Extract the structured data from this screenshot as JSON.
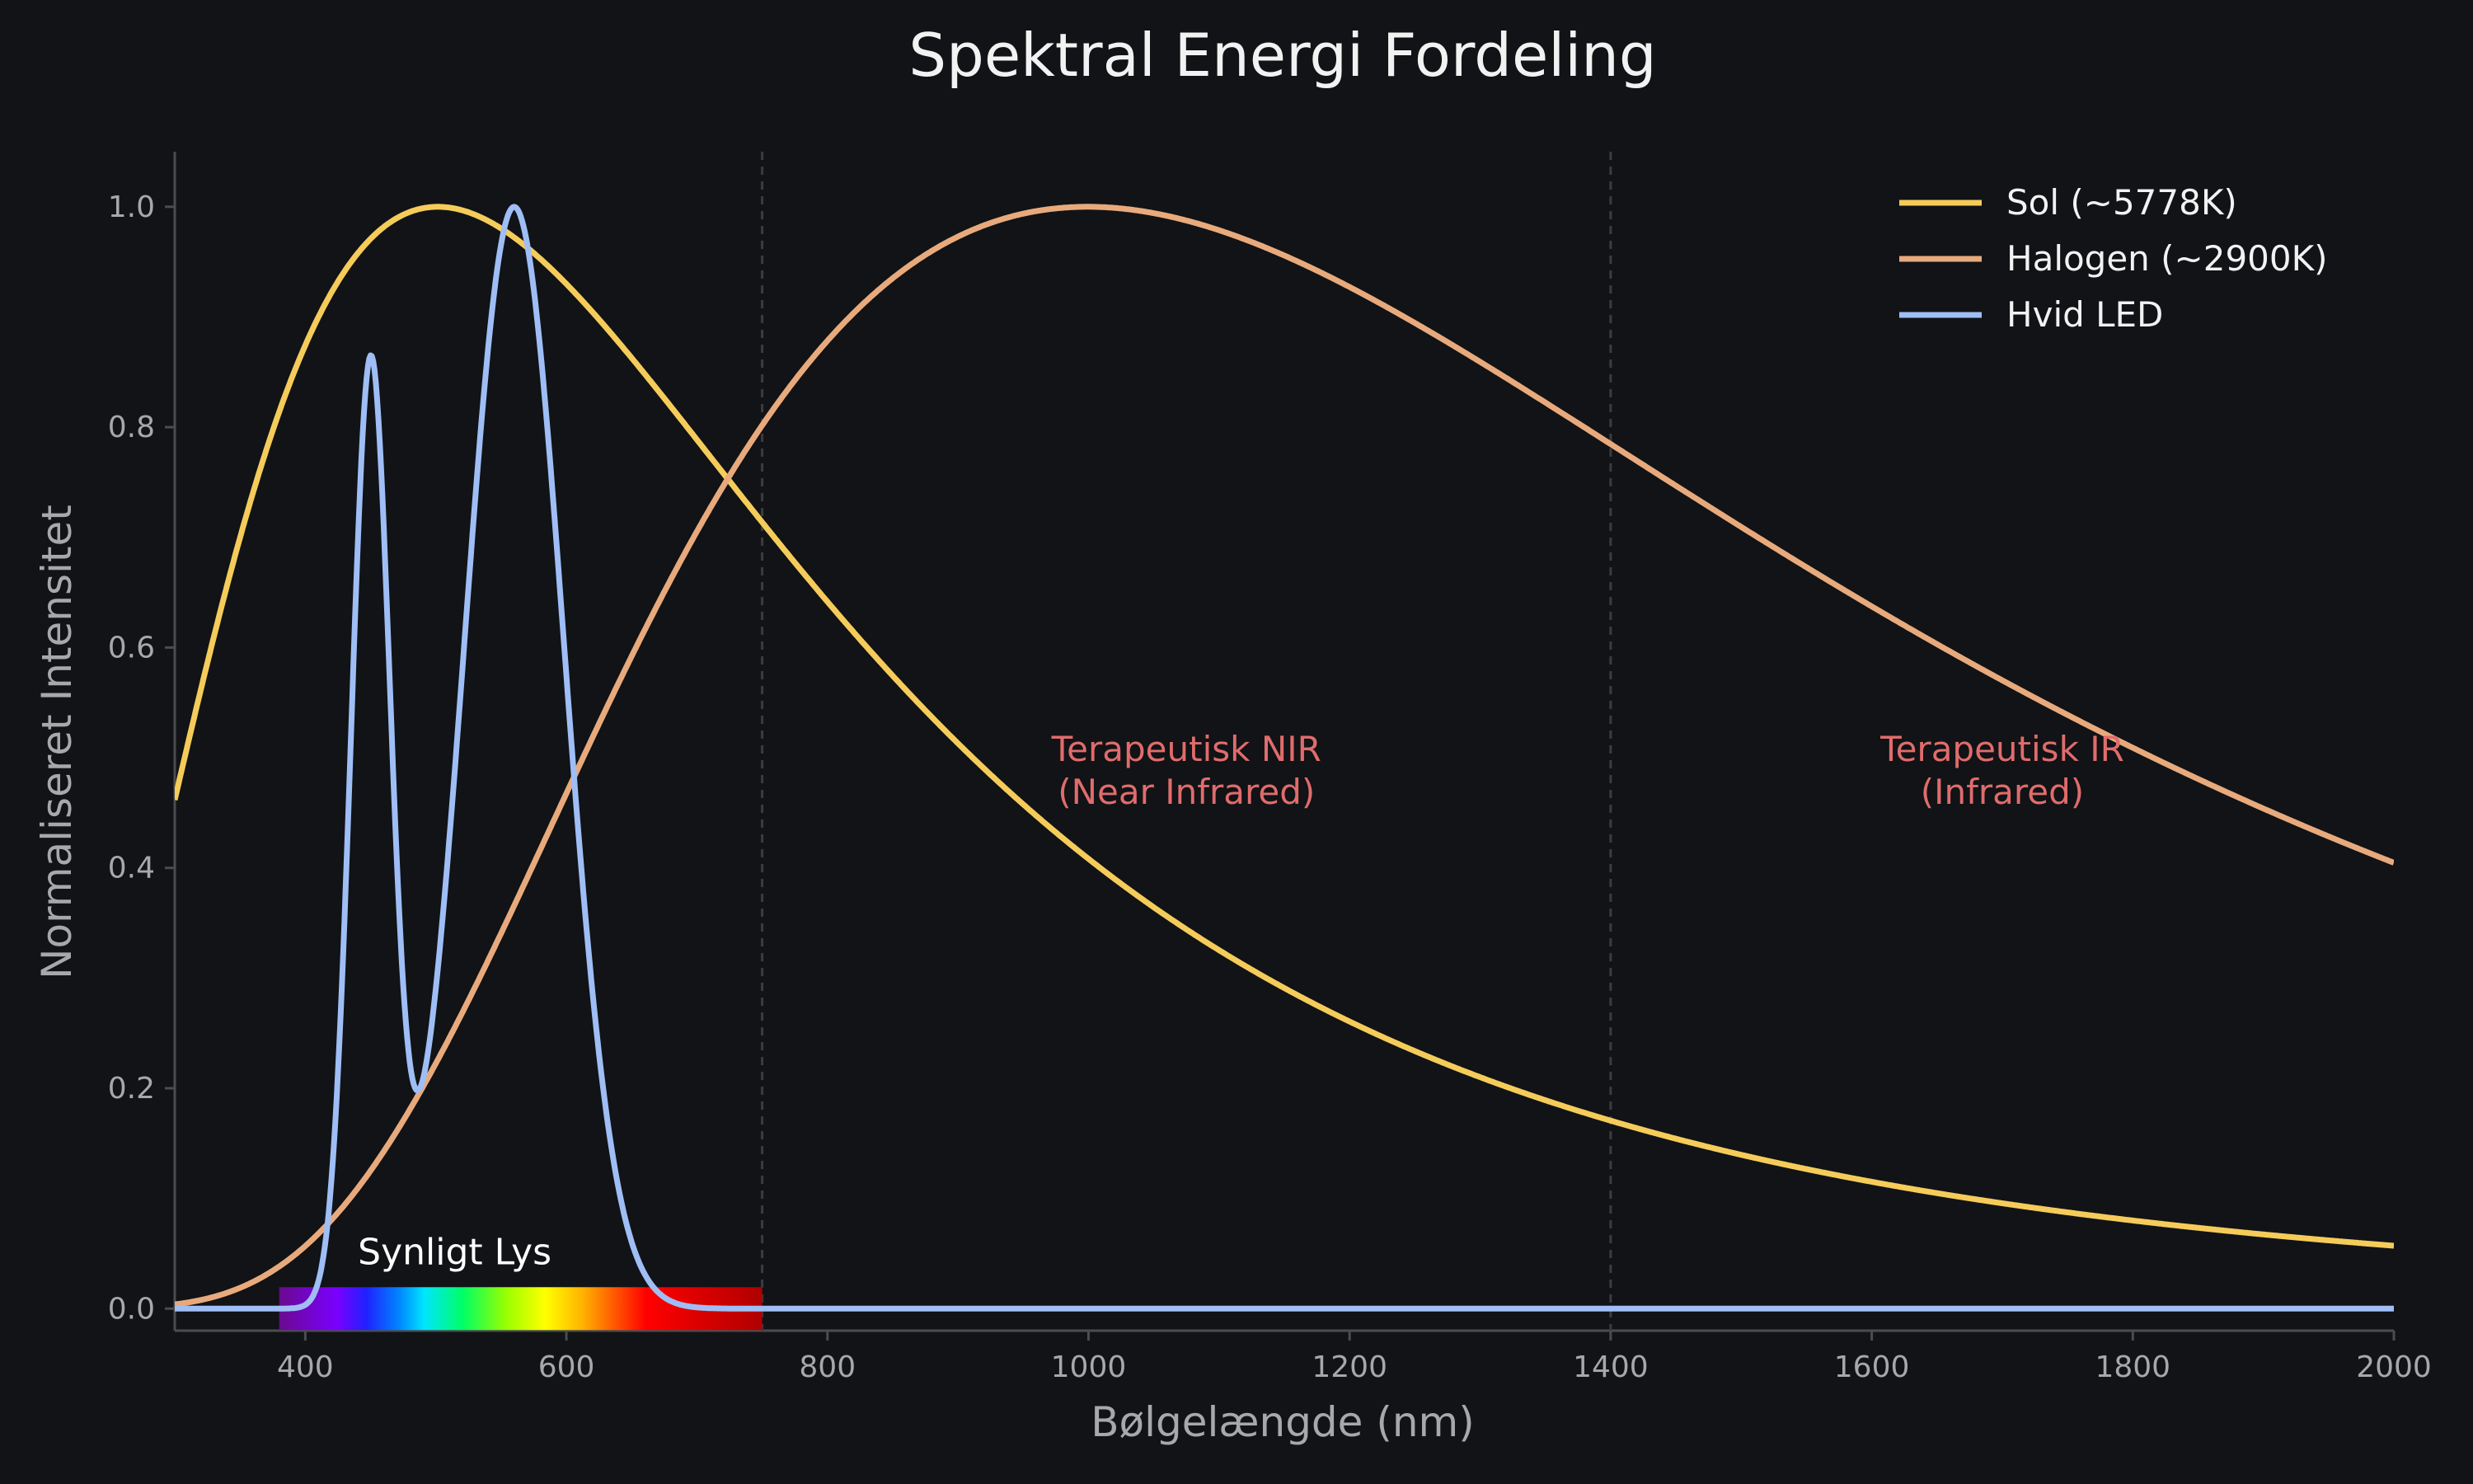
{
  "chart_data": {
    "type": "line",
    "title": "Spektral Energi Fordeling",
    "xlabel": "Bølgelængde (nm)",
    "ylabel": "Normaliseret Intensitet",
    "xlim": [
      300,
      2000
    ],
    "ylim": [
      -0.02,
      1.05
    ],
    "xticks": [
      400,
      600,
      800,
      1000,
      1200,
      1400,
      1600,
      1800,
      2000
    ],
    "yticks": [
      "0.0",
      "0.2",
      "0.4",
      "0.6",
      "0.8",
      "1.0"
    ],
    "grid": false,
    "legend_position": "top-right",
    "vertical_lines_nm": [
      750,
      1400
    ],
    "visible_band": {
      "label": "Synligt Lys",
      "from_nm": 380,
      "to_nm": 750
    },
    "annotations": [
      {
        "lines": [
          "Terapeutisk NIR",
          "(Near Infrared)"
        ],
        "x_nm": 1075,
        "y": 0.5
      },
      {
        "lines": [
          "Terapeutisk IR",
          "(Infrared)"
        ],
        "x_nm": 1700,
        "y": 0.5
      }
    ],
    "series": [
      {
        "name": "Sol (~5778K)",
        "color": "#f5cc5a",
        "model": "blackbody",
        "temperature_K": 5778,
        "x": [
          300,
          350,
          400,
          450,
          500,
          550,
          600,
          650,
          700,
          750,
          800,
          900,
          1000,
          1100,
          1200,
          1300,
          1400,
          1600,
          1800,
          2000
        ],
        "values": [
          0.46,
          0.72,
          0.89,
          0.97,
          1.0,
          0.98,
          0.94,
          0.87,
          0.8,
          0.72,
          0.64,
          0.51,
          0.4,
          0.32,
          0.25,
          0.2,
          0.17,
          0.12,
          0.08,
          0.06
        ]
      },
      {
        "name": "Halogen (~2900K)",
        "color": "#e8aa7c",
        "model": "blackbody",
        "temperature_K": 2900,
        "x": [
          300,
          400,
          500,
          600,
          700,
          800,
          900,
          1000,
          1100,
          1200,
          1300,
          1400,
          1600,
          1800,
          2000
        ],
        "values": [
          0.01,
          0.08,
          0.21,
          0.45,
          0.68,
          0.86,
          0.97,
          1.0,
          0.98,
          0.93,
          0.86,
          0.79,
          0.64,
          0.51,
          0.41
        ]
      },
      {
        "name": "Hvid LED",
        "color": "#9fbef5",
        "model": "two_gaussians",
        "peaks": [
          {
            "center_nm": 450,
            "height": 0.85
          },
          {
            "center_nm": 560,
            "height": 1.0
          }
        ],
        "x": [
          300,
          410,
          430,
          450,
          480,
          520,
          560,
          600,
          650,
          700,
          750,
          2000
        ],
        "values": [
          0.0,
          0.02,
          0.55,
          0.85,
          0.24,
          0.55,
          1.0,
          0.58,
          0.1,
          0.0,
          0.0,
          0.0
        ]
      }
    ]
  }
}
